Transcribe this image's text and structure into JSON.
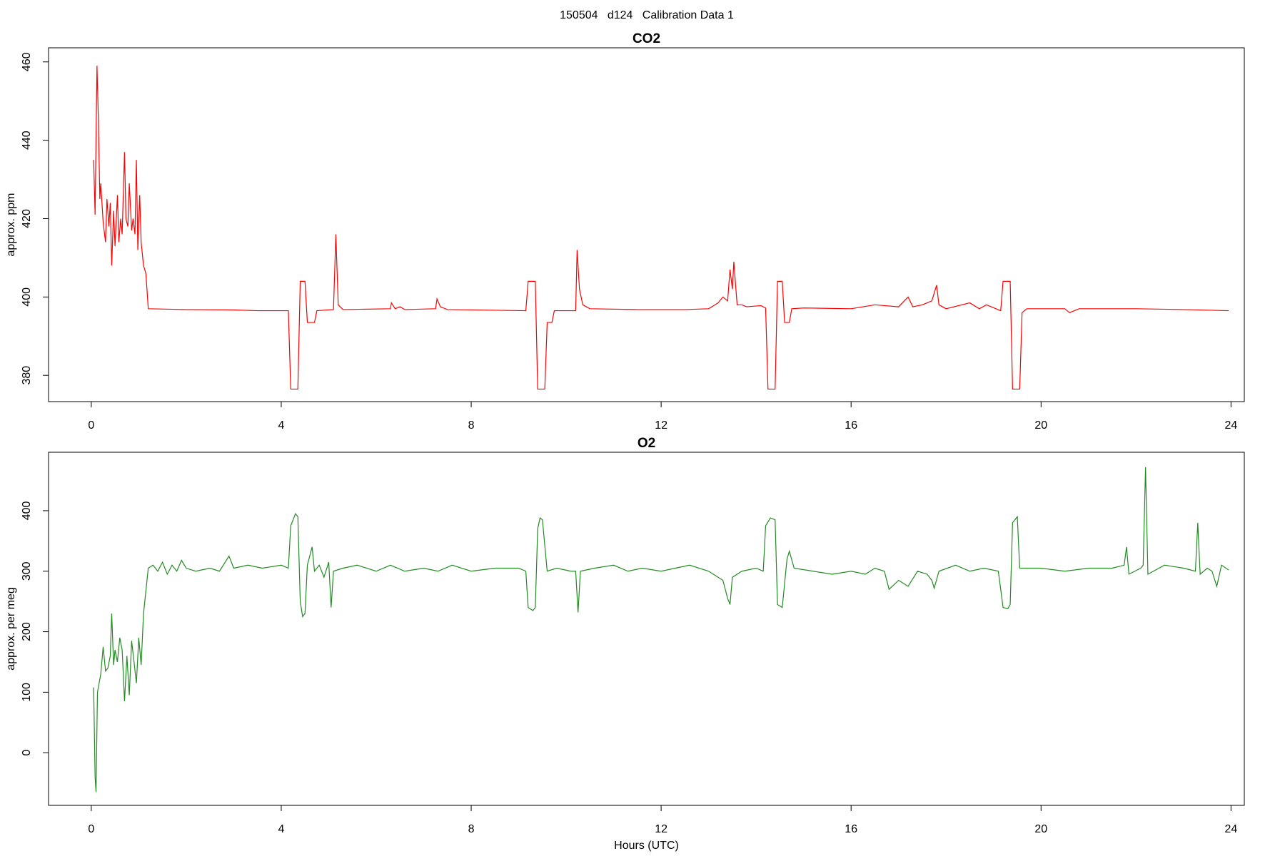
{
  "title": "150504   d124   Calibration Data 1",
  "chart_data": [
    {
      "type": "line",
      "title": "CO2",
      "ylabel": "approx. ppm",
      "xlim": [
        -0.9,
        24.28
      ],
      "xticks": [
        0,
        4,
        8,
        12,
        16,
        20,
        24
      ],
      "ylim": [
        373.3,
        463.6
      ],
      "yticks": [
        380,
        400,
        420,
        440,
        460
      ],
      "grid": false,
      "x": [
        0.05,
        0.08,
        0.12,
        0.15,
        0.18,
        0.2,
        0.25,
        0.3,
        0.33,
        0.37,
        0.4,
        0.43,
        0.47,
        0.5,
        0.55,
        0.58,
        0.62,
        0.65,
        0.7,
        0.73,
        0.77,
        0.8,
        0.85,
        0.88,
        0.92,
        0.95,
        0.98,
        1.02,
        1.05,
        1.1,
        1.15,
        1.2,
        2.0,
        3.0,
        3.5,
        4.15,
        4.2,
        4.35,
        4.4,
        4.5,
        4.55,
        4.7,
        4.75,
        5.1,
        5.15,
        5.2,
        5.3,
        6.3,
        6.32,
        6.4,
        6.5,
        6.6,
        7.25,
        7.28,
        7.35,
        7.5,
        9.15,
        9.2,
        9.35,
        9.4,
        9.55,
        9.6,
        9.7,
        9.75,
        10.2,
        10.23,
        10.28,
        10.35,
        10.5,
        11.5,
        12.5,
        13.0,
        13.2,
        13.3,
        13.4,
        13.45,
        13.5,
        13.53,
        13.6,
        13.7,
        13.8,
        14.1,
        14.2,
        14.25,
        14.4,
        14.45,
        14.55,
        14.6,
        14.7,
        14.75,
        15.0,
        16.0,
        16.5,
        17.0,
        17.2,
        17.3,
        17.5,
        17.7,
        17.8,
        17.85,
        18.0,
        18.5,
        18.7,
        18.85,
        19.15,
        19.2,
        19.35,
        19.4,
        19.55,
        19.6,
        19.7,
        20.5,
        20.6,
        20.8,
        22,
        23,
        23.95
      ],
      "series": [
        {
          "color": "#ff0000",
          "values": [
            435,
            421,
            459,
            445,
            425,
            429,
            419,
            414,
            425,
            418,
            424,
            408,
            422,
            413,
            426,
            414,
            420,
            416,
            437,
            420,
            418,
            429,
            417,
            420,
            416,
            435,
            412,
            426,
            414,
            408,
            406,
            397,
            396.8,
            396.7,
            396.5,
            396.5,
            376.5,
            376.5,
            404,
            404,
            393.5,
            393.5,
            396.5,
            396.8,
            416,
            398,
            396.8,
            397,
            398.5,
            397,
            397.5,
            396.8,
            397,
            399.5,
            397.5,
            396.8,
            396.5,
            404,
            404,
            376.5,
            376.5,
            393.5,
            393.5,
            396.5,
            396.5,
            412,
            402,
            398,
            397,
            396.8,
            396.8,
            397,
            398.5,
            400,
            399,
            407,
            402,
            409,
            398,
            398,
            397.5,
            397.8,
            397.2,
            376.5,
            376.5,
            404,
            404,
            393.5,
            393.5,
            397,
            397.2,
            397,
            398,
            397.5,
            400,
            397.5,
            398,
            399,
            403,
            398,
            397,
            398.5,
            397,
            398,
            396.5,
            404,
            404,
            376.5,
            376.5,
            396,
            397,
            397,
            396,
            397,
            397,
            396.8,
            396.5
          ]
        }
      ]
    },
    {
      "type": "line",
      "title": "O2",
      "ylabel": "approx. per meg",
      "xlabel": "Hours (UTC)",
      "xlim": [
        -0.9,
        24.28
      ],
      "xticks": [
        0,
        4,
        8,
        12,
        16,
        20,
        24
      ],
      "ylim": [
        -87,
        496.6
      ],
      "yticks": [
        0,
        100,
        200,
        300,
        400
      ],
      "grid": false,
      "x": [
        0.05,
        0.08,
        0.1,
        0.13,
        0.2,
        0.25,
        0.3,
        0.35,
        0.4,
        0.43,
        0.47,
        0.5,
        0.55,
        0.6,
        0.65,
        0.7,
        0.75,
        0.8,
        0.85,
        0.9,
        0.95,
        1.0,
        1.05,
        1.1,
        1.2,
        1.3,
        1.4,
        1.5,
        1.6,
        1.7,
        1.8,
        1.9,
        2.0,
        2.2,
        2.5,
        2.7,
        2.9,
        3.0,
        3.3,
        3.6,
        4.0,
        4.15,
        4.2,
        4.3,
        4.35,
        4.4,
        4.45,
        4.5,
        4.55,
        4.65,
        4.7,
        4.8,
        4.9,
        5.0,
        5.05,
        5.1,
        5.3,
        5.6,
        6.0,
        6.3,
        6.6,
        7.0,
        7.3,
        7.6,
        8.0,
        8.5,
        9.0,
        9.15,
        9.2,
        9.3,
        9.35,
        9.4,
        9.45,
        9.5,
        9.6,
        9.8,
        10.1,
        10.2,
        10.25,
        10.3,
        10.6,
        11,
        11.3,
        11.6,
        12,
        12.3,
        12.6,
        13.0,
        13.3,
        13.4,
        13.45,
        13.5,
        13.7,
        14.0,
        14.15,
        14.2,
        14.3,
        14.4,
        14.45,
        14.55,
        14.65,
        14.7,
        14.8,
        15.2,
        15.6,
        16,
        16.3,
        16.5,
        16.7,
        16.8,
        17.0,
        17.2,
        17.4,
        17.6,
        17.7,
        17.75,
        17.85,
        18.2,
        18.5,
        18.8,
        19.1,
        19.2,
        19.3,
        19.35,
        19.4,
        19.5,
        19.55,
        20.0,
        20.5,
        21,
        21.5,
        21.75,
        21.8,
        21.85,
        22.1,
        22.15,
        22.2,
        22.25,
        22.6,
        23.0,
        23.25,
        23.3,
        23.35,
        23.5,
        23.6,
        23.7,
        23.8,
        23.95
      ],
      "series": [
        {
          "color": "#228b22",
          "values": [
            108,
            -40,
            -65,
            100,
            130,
            175,
            135,
            140,
            160,
            230,
            145,
            170,
            150,
            190,
            170,
            85,
            160,
            95,
            185,
            150,
            115,
            190,
            145,
            230,
            305,
            310,
            300,
            315,
            295,
            310,
            300,
            318,
            305,
            300,
            305,
            300,
            325,
            305,
            310,
            305,
            310,
            305,
            375,
            395,
            390,
            250,
            225,
            230,
            310,
            340,
            300,
            310,
            290,
            315,
            240,
            300,
            305,
            310,
            300,
            310,
            300,
            305,
            300,
            310,
            300,
            305,
            305,
            300,
            240,
            235,
            240,
            370,
            388,
            385,
            300,
            305,
            300,
            300,
            232,
            300,
            305,
            310,
            300,
            305,
            300,
            305,
            310,
            300,
            285,
            255,
            245,
            290,
            300,
            305,
            300,
            375,
            388,
            385,
            245,
            240,
            320,
            333,
            305,
            300,
            295,
            300,
            295,
            305,
            300,
            270,
            285,
            275,
            300,
            295,
            285,
            272,
            300,
            310,
            300,
            305,
            300,
            240,
            238,
            245,
            380,
            390,
            305,
            305,
            300,
            305,
            305,
            310,
            340,
            295,
            305,
            310,
            472,
            295,
            310,
            305,
            300,
            380,
            295,
            305,
            300,
            275,
            310,
            302
          ]
        }
      ]
    }
  ]
}
